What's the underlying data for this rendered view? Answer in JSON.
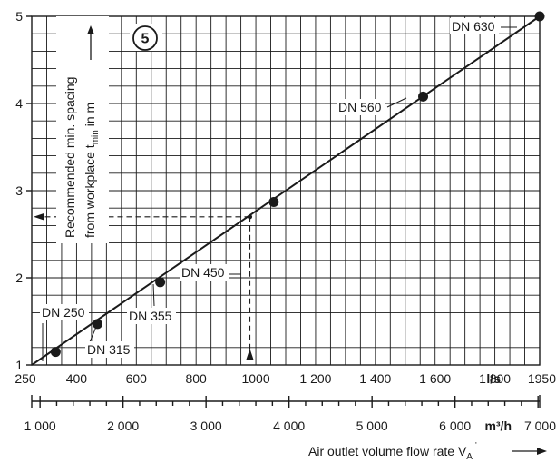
{
  "chart_data": {
    "type": "line",
    "badge": "5",
    "ylabel_line1": "Recommended min. spacing",
    "ylabel_line2_prefix": "from workplace t",
    "ylabel_line2_sub": "min",
    "ylabel_line2_suffix": " in m",
    "xlabel_prefix": "Air outlet volume flow rate V",
    "xlabel_sub": "A",
    "x_unit_primary": "l/s",
    "x_unit_secondary": "m³/h",
    "xlim": [
      250,
      1950
    ],
    "ylim": [
      1,
      5
    ],
    "y_ticks": [
      "1",
      "2",
      "3",
      "4",
      "5"
    ],
    "x_ticks": [
      {
        "value": 250,
        "label": "250"
      },
      {
        "value": 400,
        "label": "400"
      },
      {
        "value": 600,
        "label": "600"
      },
      {
        "value": 800,
        "label": "800"
      },
      {
        "value": 1000,
        "label": "1000"
      },
      {
        "value": 1200,
        "label": "1 200"
      },
      {
        "value": 1400,
        "label": "1 400"
      },
      {
        "value": 1600,
        "label": "1 600"
      },
      {
        "value": 1800,
        "label": "1 800"
      },
      {
        "value": 1950,
        "label": "1950"
      }
    ],
    "x2_ticks": [
      {
        "value": 1000,
        "label": "1 000"
      },
      {
        "value": 2000,
        "label": "2 000"
      },
      {
        "value": 3000,
        "label": "3 000"
      },
      {
        "value": 4000,
        "label": "4 000"
      },
      {
        "value": 5000,
        "label": "5 000"
      },
      {
        "value": 6000,
        "label": "6 000"
      },
      {
        "value": 7000,
        "label": "7 000"
      }
    ],
    "series": [
      {
        "points": [
          {
            "x": 250,
            "y": 1.0
          },
          {
            "x": 1950,
            "y": 5.0
          }
        ]
      }
    ],
    "markers": [
      {
        "name": "DN 250",
        "x": 330,
        "y": 1.15
      },
      {
        "name": "DN 315",
        "x": 470,
        "y": 1.47
      },
      {
        "name": "DN 355",
        "x": 680,
        "y": 1.95
      },
      {
        "name": "DN 450",
        "x": 1060,
        "y": 2.87
      },
      {
        "name": "DN 560",
        "x": 1560,
        "y": 4.08
      },
      {
        "name": "DN 630",
        "x": 1950,
        "y": 5.0
      }
    ],
    "example": {
      "x": 980,
      "y": 2.7
    }
  }
}
